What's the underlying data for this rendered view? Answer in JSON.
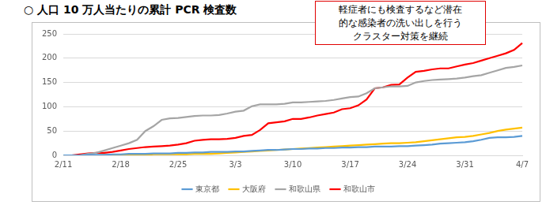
{
  "chart_data": {
    "type": "line",
    "title": "○ 人口 10 万人当たりの累計 PCR 検査数",
    "annotation": "軽症者にも検査するなど潜在\n的な感染者の洗い出しを行う\nクラスター対策を継続",
    "categories": [
      "2/11",
      null,
      null,
      null,
      null,
      null,
      null,
      "2/18",
      null,
      null,
      null,
      null,
      null,
      null,
      "2/25",
      null,
      null,
      null,
      null,
      null,
      null,
      "3/3",
      null,
      null,
      null,
      null,
      null,
      null,
      "3/10",
      null,
      null,
      null,
      null,
      null,
      null,
      "3/17",
      null,
      null,
      null,
      null,
      null,
      null,
      "3/24",
      null,
      null,
      null,
      null,
      null,
      null,
      "3/31",
      null,
      null,
      null,
      null,
      null,
      null,
      "4/7"
    ],
    "series": [
      {
        "name": "東京都",
        "color": "#5b9bd5",
        "values": [
          0,
          0,
          0,
          1,
          1,
          1,
          2,
          2,
          3,
          3,
          3,
          4,
          4,
          4,
          5,
          5,
          6,
          6,
          7,
          7,
          7,
          8,
          8,
          9,
          10,
          11,
          11,
          12,
          13,
          13,
          14,
          14,
          15,
          15,
          16,
          16,
          17,
          17,
          18,
          18,
          18,
          19,
          19,
          20,
          21,
          22,
          24,
          25,
          26,
          27,
          29,
          32,
          36,
          37,
          37,
          38,
          40
        ]
      },
      {
        "name": "大阪府",
        "color": "#ffc000",
        "values": [
          0,
          0,
          0,
          0,
          0,
          1,
          1,
          1,
          1,
          1,
          1,
          2,
          2,
          2,
          2,
          2,
          3,
          3,
          3,
          4,
          5,
          6,
          7,
          8,
          9,
          10,
          11,
          12,
          13,
          14,
          15,
          16,
          17,
          18,
          19,
          20,
          21,
          22,
          23,
          24,
          25,
          25,
          26,
          27,
          29,
          31,
          33,
          35,
          37,
          38,
          40,
          43,
          46,
          50,
          53,
          55,
          57
        ]
      },
      {
        "name": "和歌山県",
        "color": "#a5a5a5",
        "values": [
          0,
          0,
          0,
          3,
          5,
          10,
          15,
          20,
          25,
          32,
          50,
          60,
          73,
          76,
          77,
          79,
          81,
          82,
          82,
          83,
          86,
          90,
          92,
          101,
          105,
          105,
          105,
          106,
          109,
          109,
          110,
          111,
          112,
          114,
          117,
          120,
          121,
          128,
          138,
          140,
          142,
          142,
          143,
          150,
          153,
          155,
          156,
          157,
          158,
          160,
          163,
          165,
          170,
          175,
          180,
          182,
          185
        ]
      },
      {
        "name": "和歌山市",
        "color": "#ff0000",
        "values": [
          0,
          0,
          2,
          4,
          5,
          5,
          7,
          10,
          13,
          15,
          17,
          18,
          19,
          20,
          22,
          25,
          30,
          32,
          33,
          33,
          34,
          36,
          40,
          42,
          52,
          66,
          68,
          70,
          75,
          75,
          78,
          82,
          85,
          88,
          95,
          97,
          103,
          115,
          138,
          140,
          145,
          146,
          160,
          172,
          174,
          177,
          179,
          179,
          183,
          187,
          190,
          195,
          200,
          205,
          210,
          217,
          231
        ]
      }
    ],
    "ylim": [
      0,
      250
    ],
    "yticks": [
      0,
      50,
      100,
      150,
      200,
      250
    ],
    "grid": true,
    "legend": "bottom"
  }
}
